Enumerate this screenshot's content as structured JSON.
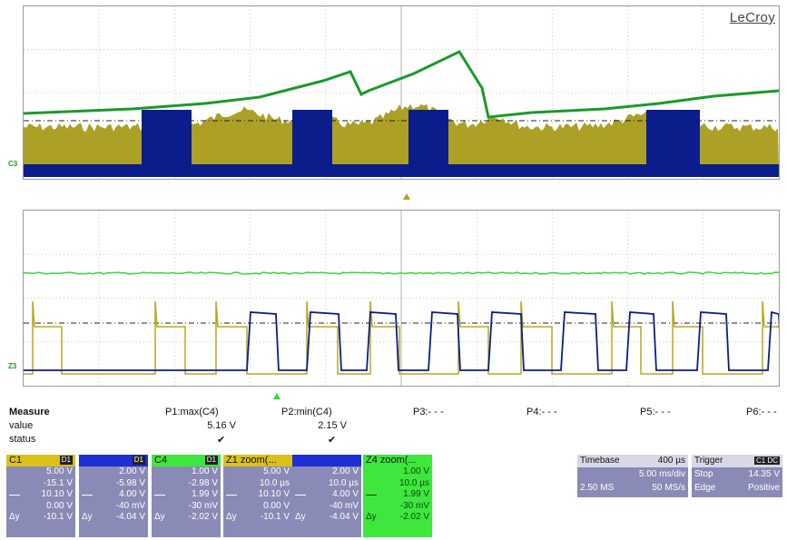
{
  "brand": "LeCroy",
  "channel_labels": {
    "top": "C3",
    "bottom": "Z3"
  },
  "colors": {
    "ch1_yellow": "#a89b1a",
    "ch2_blue": "#0b1d8a",
    "ch3_green": "#1a9a2a",
    "ch4_green": "#34d934",
    "tile_bg": "#8a8ab6"
  },
  "measure": {
    "title": "Measure",
    "row_labels": [
      "value",
      "status"
    ],
    "params": [
      {
        "name": "P1:max(C4)",
        "value": "5.16 V",
        "status": "✔"
      },
      {
        "name": "P2:min(C4)",
        "value": "2.15 V",
        "status": "✔"
      },
      {
        "name": "P3:- - -",
        "value": "",
        "status": ""
      },
      {
        "name": "P4:- - -",
        "value": "",
        "status": ""
      },
      {
        "name": "P5:- - -",
        "value": "",
        "status": ""
      },
      {
        "name": "P6:- - -",
        "value": "",
        "status": ""
      }
    ]
  },
  "tiles": [
    {
      "name": "C1",
      "badge": "D1",
      "header_color": "#d9c11a",
      "rows": [
        "5.00 V",
        "-15.1 V",
        "10.10 V",
        "0.00 V"
      ],
      "dy": "-10.1 V"
    },
    {
      "name": "",
      "badge": "D1",
      "header_color": "#1e2fd6",
      "rows": [
        "2.00 V",
        "-5.98 V",
        "4.00 V",
        "-40 mV"
      ],
      "dy": "-4.04 V"
    },
    {
      "name": "C4",
      "badge": "D1",
      "header_color": "#3ee63e",
      "rows": [
        "1.00 V",
        "-2.98 V",
        "1.99 V",
        "-30 mV"
      ],
      "dy": "-2.02 V"
    },
    {
      "name": "Z1 zoom(...",
      "badge": "",
      "header_color": "#d9c11a",
      "rows": [
        "5.00 V",
        "10.0 µs",
        "10.10 V",
        "0.00 V"
      ],
      "dy": "-10.1 V"
    },
    {
      "name": "",
      "badge": "",
      "header_color": "#1e2fd6",
      "rows": [
        "2.00 V",
        "10.0 µs",
        "4.00 V",
        "-40 mV"
      ],
      "dy": "-4.04 V"
    },
    {
      "name": "Z4 zoom(...",
      "badge": "",
      "header_color": "#3ee63e",
      "rows": [
        "1.00 V",
        "10.0 µs",
        "1.99 V",
        "-30 mV"
      ],
      "dy": "-2.02 V"
    }
  ],
  "timebase": {
    "label": "Timebase",
    "value": "400 µs",
    "per_div": "5.00 ms/div",
    "samples": "2.50 MS",
    "rate": "50 MS/s"
  },
  "trigger": {
    "label": "Trigger",
    "badge": "C1 DC",
    "mode": "Stop",
    "level": "14.35 V",
    "type": "Edge",
    "slope": "Positive"
  }
}
